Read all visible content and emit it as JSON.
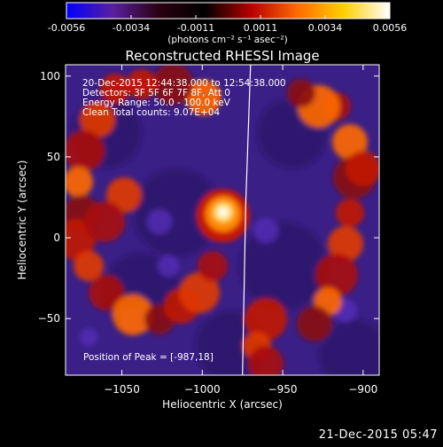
{
  "colorbar": {
    "ticks": [
      "-0.0056",
      "-0.0034",
      "-0.0011",
      "0.0011",
      "0.0034",
      "0.0056"
    ],
    "units": "(photons cm⁻² s⁻¹ asec⁻²)",
    "min": -0.0056,
    "max": 0.0056,
    "stops": [
      "#0000ff",
      "#5a1fa0",
      "#2a0010",
      "#000000",
      "#b80000",
      "#ff6a00",
      "#ffd000",
      "#ffffff"
    ]
  },
  "info": {
    "line1": "20-Dec-2015 12:44:38.000 to 12:54:38.000",
    "line2": "Detectors: 3F 5F 6F 7F 8F, Att 0",
    "line3": "Energy Range: 50.0 - 100.0 keV",
    "line4": "Clean    Total counts: 9.07E+04"
  },
  "peak_label": "Position of Peak = [-987,18]",
  "footer": "21-Dec-2015 05:47",
  "chart_data": {
    "type": "heatmap",
    "title": "Reconstructed RHESSI Image",
    "xlabel": "Heliocentric X (arcsec)",
    "ylabel": "Heliocentric Y (arcsec)",
    "xlim": [
      -1085,
      -890
    ],
    "ylim": [
      -85,
      107
    ],
    "xticks": [
      -1050,
      -1000,
      -950,
      -900
    ],
    "yticks": [
      100,
      50,
      0,
      -50
    ],
    "xtick_labels": [
      "−1050",
      "−1000",
      "−950",
      "−900"
    ],
    "ytick_labels": [
      "100",
      "50",
      "0",
      "−50"
    ],
    "peak": [
      -987,
      18
    ],
    "limb_x": [
      -970,
      -973,
      -975
    ],
    "limb_y": [
      107,
      20,
      -85
    ]
  }
}
